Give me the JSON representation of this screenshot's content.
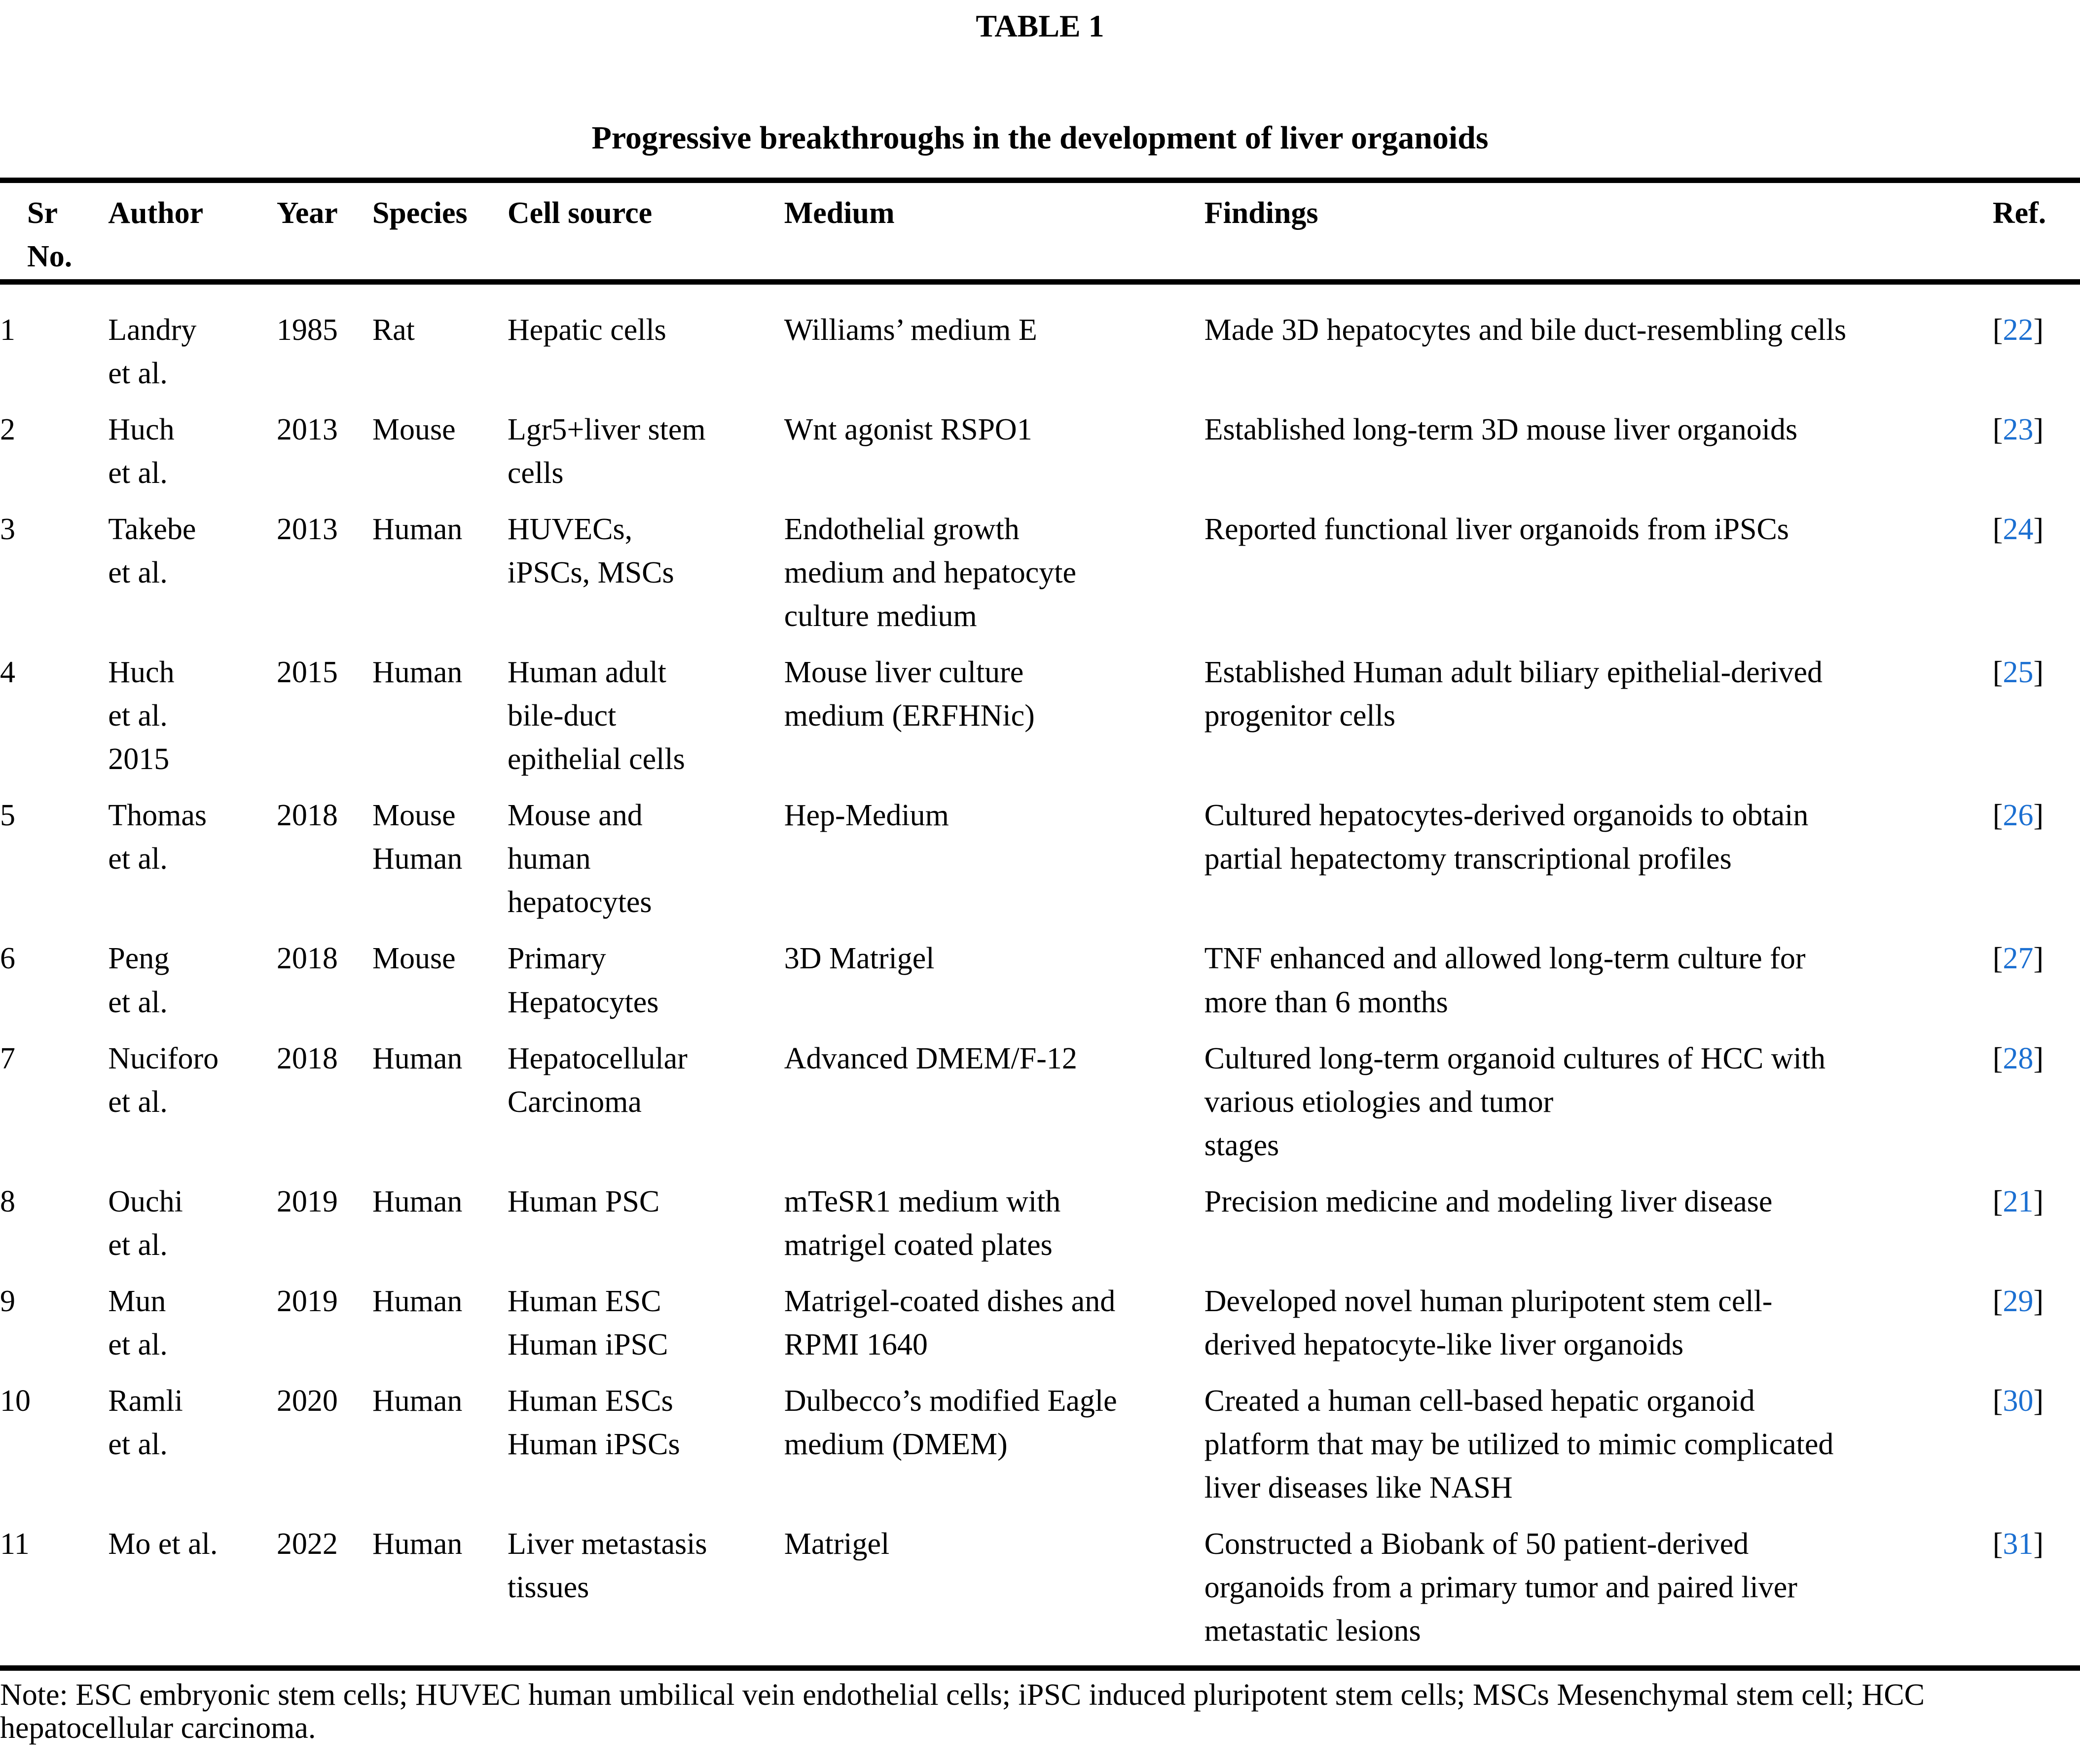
{
  "page": {
    "table_label": "TABLE 1",
    "subtitle": "Progressive breakthroughs in the development of liver organoids",
    "note": "Note: ESC embryonic stem cells; HUVEC human umbilical vein endothelial cells; iPSC induced pluripotent stem cells; MSCs Mesenchymal stem cell; HCC\nhepatocellular carcinoma."
  },
  "colors": {
    "text": "#000000",
    "background": "#ffffff",
    "rule": "#000000",
    "ref_link": "#1b6fd1"
  },
  "table": {
    "headers": {
      "sr_no": "Sr\nNo.",
      "author": "Author",
      "year": "Year",
      "species": "Species",
      "cell_source": "Cell source",
      "medium": "Medium",
      "findings": "Findings",
      "ref": "Ref."
    },
    "ref_bracket_open": "[",
    "ref_bracket_close": "]",
    "rows": [
      {
        "sr_no": "1",
        "author": "Landry\net al.",
        "year": "1985",
        "species": "Rat",
        "cell_source": "Hepatic cells",
        "medium": "Williams’ medium E",
        "findings": "Made 3D hepatocytes and bile duct-resembling cells",
        "ref": "22"
      },
      {
        "sr_no": "2",
        "author": "Huch\net al.",
        "year": "2013",
        "species": "Mouse",
        "cell_source": "Lgr5+liver stem\ncells",
        "medium": "Wnt agonist RSPO1",
        "findings": "Established long-term 3D mouse liver organoids",
        "ref": "23"
      },
      {
        "sr_no": "3",
        "author": "Takebe\net al.",
        "year": "2013",
        "species": "Human",
        "cell_source": "HUVECs,\niPSCs, MSCs",
        "medium": "Endothelial growth\nmedium and hepatocyte\nculture medium",
        "findings": "Reported functional liver organoids from iPSCs",
        "ref": "24"
      },
      {
        "sr_no": "4",
        "author": "Huch\net al.\n2015",
        "year": "2015",
        "species": "Human",
        "cell_source": "Human adult\nbile-duct\nepithelial cells",
        "medium": "Mouse liver culture\nmedium (ERFHNic)",
        "findings": "Established Human adult biliary epithelial-derived\nprogenitor cells",
        "ref": "25"
      },
      {
        "sr_no": "5",
        "author": "Thomas\net al.",
        "year": "2018",
        "species": "Mouse\nHuman",
        "cell_source": "Mouse and\nhuman\nhepatocytes",
        "medium": "Hep-Medium",
        "findings": "Cultured hepatocytes-derived organoids to obtain\npartial hepatectomy transcriptional profiles",
        "ref": "26"
      },
      {
        "sr_no": "6",
        "author": "Peng\net al.",
        "year": "2018",
        "species": "Mouse",
        "cell_source": "Primary\nHepatocytes",
        "medium": "3D Matrigel",
        "findings": "TNF enhanced and allowed long-term culture for\nmore than 6 months",
        "ref": "27"
      },
      {
        "sr_no": "7",
        "author": "Nuciforo\net al.",
        "year": "2018",
        "species": "Human",
        "cell_source": "Hepatocellular\nCarcinoma",
        "medium": "Advanced DMEM/F-12",
        "findings": "Cultured long-term organoid cultures of HCC with\nvarious etiologies and tumor\nstages",
        "ref": "28"
      },
      {
        "sr_no": "8",
        "author": "Ouchi\net al.",
        "year": "2019",
        "species": "Human",
        "cell_source": "Human PSC",
        "medium": "mTeSR1 medium with\nmatrigel coated plates",
        "findings": "Precision medicine and modeling liver disease",
        "ref": "21"
      },
      {
        "sr_no": "9",
        "author": "Mun\net al.",
        "year": "2019",
        "species": "Human",
        "cell_source": "Human ESC\nHuman iPSC",
        "medium": "Matrigel-coated dishes and\nRPMI 1640",
        "findings": "Developed novel human pluripotent stem cell-\nderived hepatocyte-like liver organoids",
        "ref": "29"
      },
      {
        "sr_no": "10",
        "author": "Ramli\net al.",
        "year": "2020",
        "species": "Human",
        "cell_source": "Human ESCs\nHuman iPSCs",
        "medium": "Dulbecco’s modified Eagle\nmedium (DMEM)",
        "findings": "Created a human cell-based hepatic organoid\nplatform that may be utilized to mimic complicated\nliver diseases like NASH",
        "ref": "30"
      },
      {
        "sr_no": "11",
        "author": "Mo et al.",
        "year": "2022",
        "species": "Human",
        "cell_source": "Liver metastasis\ntissues",
        "medium": "Matrigel",
        "findings": "Constructed a Biobank of 50 patient-derived\norganoids from a primary tumor and paired liver\nmetastatic lesions",
        "ref": "31"
      }
    ]
  }
}
